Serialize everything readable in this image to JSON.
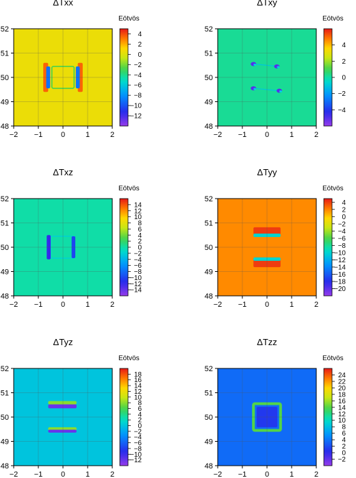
{
  "figure": {
    "panel_order": [
      "Txx",
      "Txy",
      "Txz",
      "Tyy",
      "Tyz",
      "Tzz"
    ]
  },
  "chart_data": [
    {
      "type": "heatmap",
      "id": "Txx",
      "title": "ΔTxx",
      "colorbar_label": "Eötvös",
      "xlim": [
        -2,
        2
      ],
      "ylim": [
        48,
        52
      ],
      "x_ticks": [
        "-2",
        "-1",
        "0",
        "1",
        "2"
      ],
      "y_ticks": [
        "48",
        "49",
        "50",
        "51",
        "52"
      ],
      "grid": true,
      "background_value": 0.5,
      "colorbar_range": [
        -14,
        5
      ],
      "colorbar_ticks": [
        4,
        2,
        0,
        -2,
        -4,
        -6,
        -8,
        -10,
        -12
      ],
      "features": [
        {
          "kind": "rect_outline",
          "x": [
            -0.45,
            0.45
          ],
          "y": [
            49.55,
            50.45
          ],
          "value": -3
        },
        {
          "kind": "band",
          "x": [
            -0.8,
            -0.6
          ],
          "y": [
            49.4,
            50.6
          ],
          "value": 3.5
        },
        {
          "kind": "band",
          "x": [
            0.6,
            0.8
          ],
          "y": [
            49.4,
            50.6
          ],
          "value": 3.5
        },
        {
          "kind": "band",
          "x": [
            -0.68,
            -0.52
          ],
          "y": [
            49.55,
            50.45
          ],
          "value": -9
        },
        {
          "kind": "band",
          "x": [
            0.52,
            0.68
          ],
          "y": [
            49.55,
            50.45
          ],
          "value": -9
        }
      ]
    },
    {
      "type": "heatmap",
      "id": "Txy",
      "title": "ΔTxy",
      "colorbar_label": "Eötvös",
      "xlim": [
        -2,
        2
      ],
      "ylim": [
        48,
        52
      ],
      "x_ticks": [
        "-2",
        "-1",
        "0",
        "1",
        "2"
      ],
      "y_ticks": [
        "48",
        "49",
        "50",
        "51",
        "52"
      ],
      "grid": true,
      "background_value": 0.2,
      "colorbar_range": [
        -6,
        6
      ],
      "colorbar_ticks": [
        4,
        2,
        0,
        -2,
        -4
      ],
      "features": [
        {
          "kind": "line",
          "x": [
            -0.55,
            0.45
          ],
          "y": [
            50.55,
            50.45
          ],
          "value": -1
        },
        {
          "kind": "line",
          "x": [
            -0.55,
            0.5
          ],
          "y": [
            49.55,
            49.45
          ],
          "value": -1
        },
        {
          "kind": "spot",
          "x": -0.55,
          "y": 50.55,
          "value": -5
        },
        {
          "kind": "spot",
          "x": 0.4,
          "y": 50.45,
          "value": -5
        },
        {
          "kind": "spot",
          "x": -0.55,
          "y": 49.55,
          "value": -5
        },
        {
          "kind": "spot",
          "x": 0.5,
          "y": 49.45,
          "value": -5
        }
      ]
    },
    {
      "type": "heatmap",
      "id": "Txz",
      "title": "ΔTxz",
      "colorbar_label": "Eötvös",
      "xlim": [
        -2,
        2
      ],
      "ylim": [
        48,
        52
      ],
      "x_ticks": [
        "-2",
        "-1",
        "0",
        "1",
        "2"
      ],
      "y_ticks": [
        "48",
        "49",
        "50",
        "51",
        "52"
      ],
      "grid": true,
      "background_value": 0,
      "colorbar_range": [
        -16,
        16
      ],
      "colorbar_ticks": [
        14,
        12,
        10,
        8,
        6,
        4,
        2,
        0,
        -2,
        -4,
        -6,
        -8,
        -10,
        -12,
        -14
      ],
      "features": [
        {
          "kind": "rect_outline",
          "x": [
            -0.5,
            0.45
          ],
          "y": [
            49.55,
            50.45
          ],
          "value": -2
        },
        {
          "kind": "band",
          "x": [
            -0.66,
            -0.5
          ],
          "y": [
            49.5,
            50.5
          ],
          "value": -12
        },
        {
          "kind": "band",
          "x": [
            0.35,
            0.5
          ],
          "y": [
            49.55,
            50.45
          ],
          "value": -10
        }
      ]
    },
    {
      "type": "heatmap",
      "id": "Tyy",
      "title": "ΔTyy",
      "colorbar_label": "Eötvös",
      "xlim": [
        -2,
        2
      ],
      "ylim": [
        48,
        52
      ],
      "x_ticks": [
        "-2",
        "-1",
        "0",
        "1",
        "2"
      ],
      "y_ticks": [
        "48",
        "49",
        "50",
        "51",
        "52"
      ],
      "grid": true,
      "background_value": 1.8,
      "colorbar_range": [
        -22,
        5
      ],
      "colorbar_ticks": [
        4,
        2,
        0,
        -2,
        -4,
        -6,
        -8,
        -10,
        -12,
        -14,
        -16,
        -18,
        -20
      ],
      "features": [
        {
          "kind": "band",
          "x": [
            -0.55,
            0.55
          ],
          "y": [
            50.52,
            50.82
          ],
          "value": 4
        },
        {
          "kind": "band",
          "x": [
            -0.55,
            0.55
          ],
          "y": [
            49.18,
            49.48
          ],
          "value": 4
        },
        {
          "kind": "band",
          "x": [
            -0.55,
            0.55
          ],
          "y": [
            50.42,
            50.56
          ],
          "value": -10
        },
        {
          "kind": "band",
          "x": [
            -0.55,
            0.55
          ],
          "y": [
            49.44,
            49.58
          ],
          "value": -10
        }
      ]
    },
    {
      "type": "heatmap",
      "id": "Tyz",
      "title": "ΔTyz",
      "colorbar_label": "Eötvös",
      "xlim": [
        -2,
        2
      ],
      "ylim": [
        48,
        52
      ],
      "x_ticks": [
        "-2",
        "-1",
        "0",
        "1",
        "2"
      ],
      "y_ticks": [
        "48",
        "49",
        "50",
        "51",
        "52"
      ],
      "grid": true,
      "background_value": 0,
      "colorbar_range": [
        -14,
        20
      ],
      "colorbar_ticks": [
        18,
        16,
        14,
        12,
        10,
        8,
        6,
        4,
        2,
        0,
        -2,
        -4,
        -6,
        -8,
        -10,
        -12
      ],
      "features": [
        {
          "kind": "band",
          "x": [
            -0.6,
            0.55
          ],
          "y": [
            50.52,
            50.66
          ],
          "value": 8
        },
        {
          "kind": "band",
          "x": [
            -0.6,
            0.55
          ],
          "y": [
            49.45,
            49.58
          ],
          "value": 8
        },
        {
          "kind": "band",
          "x": [
            -0.6,
            0.55
          ],
          "y": [
            50.36,
            50.52
          ],
          "value": -12
        },
        {
          "kind": "band",
          "x": [
            -0.6,
            0.55
          ],
          "y": [
            49.36,
            49.48
          ],
          "value": -12
        }
      ]
    },
    {
      "type": "heatmap",
      "id": "Tzz",
      "title": "ΔTzz",
      "colorbar_label": "Eötvös",
      "xlim": [
        -2,
        2
      ],
      "ylim": [
        48,
        52
      ],
      "x_ticks": [
        "-2",
        "-1",
        "0",
        "1",
        "2"
      ],
      "y_ticks": [
        "48",
        "49",
        "50",
        "51",
        "52"
      ],
      "grid": true,
      "background_value": 3.5,
      "colorbar_range": [
        -4,
        26
      ],
      "colorbar_ticks": [
        24,
        22,
        20,
        18,
        16,
        14,
        12,
        10,
        8,
        6,
        4,
        2,
        0,
        -2
      ],
      "features": [
        {
          "kind": "rect_outline",
          "x": [
            -0.55,
            0.55
          ],
          "y": [
            49.45,
            50.55
          ],
          "value": 14
        },
        {
          "kind": "rect_fill",
          "x": [
            -0.42,
            0.42
          ],
          "y": [
            49.58,
            50.42
          ],
          "value": 1
        }
      ]
    }
  ]
}
